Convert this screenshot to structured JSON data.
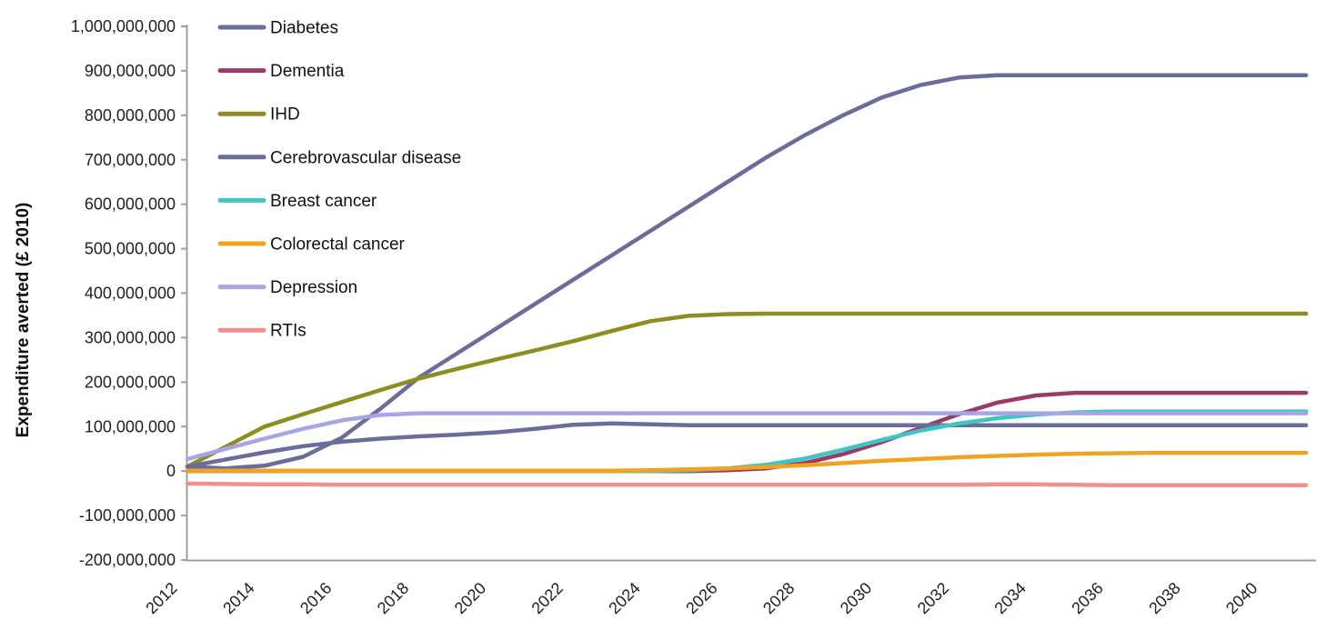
{
  "chart_data": {
    "type": "line",
    "title": "",
    "xlabel": "",
    "ylabel": "Expenditure averted (£ 2010)",
    "grid": false,
    "legend_position": "inside-top-left",
    "axis_color": "#a0a0a0",
    "value_unit": "GBP",
    "values_scale_note": "series values are in millions of £ (multiply by 1,000,000)",
    "x_years": [
      2012,
      2013,
      2014,
      2015,
      2016,
      2017,
      2018,
      2019,
      2020,
      2021,
      2022,
      2023,
      2024,
      2025,
      2026,
      2027,
      2028,
      2029,
      2030,
      2031,
      2032,
      2033,
      2034,
      2035,
      2036,
      2037,
      2038,
      2039,
      2040,
      2041
    ],
    "x_tick_labels": [
      "2012",
      "2014",
      "2016",
      "2018",
      "2020",
      "2022",
      "2024",
      "2026",
      "2028",
      "2030",
      "2032",
      "2034",
      "2036",
      "2038",
      "2040"
    ],
    "y_axis": {
      "min": -200000000,
      "max": 1000000000,
      "step": 100000000,
      "tick_labels": [
        "1,000,000,000",
        "900,000,000",
        "800,000,000",
        "700,000,000",
        "600,000,000",
        "500,000,000",
        "400,000,000",
        "300,000,000",
        "200,000,000",
        "100,000,000",
        "0",
        "-100,000,000",
        "-200,000,000"
      ]
    },
    "series": [
      {
        "name": "Diabetes",
        "color": "#6A6D9C",
        "values_m": [
          10,
          6,
          12,
          32,
          75,
          140,
          210,
          265,
          320,
          375,
          430,
          485,
          540,
          595,
          650,
          705,
          755,
          800,
          840,
          868,
          885,
          890,
          890,
          890,
          890,
          890,
          890,
          890,
          890,
          890
        ]
      },
      {
        "name": "Dementia",
        "color": "#9B3A68",
        "values_m": [
          0,
          0,
          0,
          0,
          0,
          0,
          0,
          0,
          0,
          0,
          0,
          0,
          0,
          0,
          2,
          6,
          18,
          38,
          65,
          97,
          128,
          154,
          170,
          176,
          176,
          176,
          176,
          176,
          176,
          176
        ]
      },
      {
        "name": "IHD",
        "color": "#8F8C20",
        "values_m": [
          10,
          55,
          100,
          128,
          155,
          182,
          208,
          230,
          251,
          271,
          292,
          315,
          337,
          349,
          353,
          354,
          354,
          354,
          354,
          354,
          354,
          354,
          354,
          354,
          354,
          354,
          354,
          354,
          354,
          354
        ]
      },
      {
        "name": "Cerebrovascular disease",
        "color": "#6A6D9C",
        "values_m": [
          10,
          26,
          42,
          56,
          66,
          73,
          78,
          82,
          87,
          95,
          104,
          107,
          105,
          103,
          103,
          103,
          103,
          103,
          103,
          103,
          103,
          103,
          103,
          103,
          103,
          103,
          103,
          103,
          103,
          103
        ]
      },
      {
        "name": "Breast cancer",
        "color": "#3FC6C0",
        "values_m": [
          0,
          0,
          0,
          0,
          0,
          0,
          0,
          0,
          0,
          0,
          0,
          0,
          0,
          2,
          6,
          14,
          28,
          48,
          70,
          91,
          107,
          119,
          127,
          132,
          134,
          134,
          134,
          134,
          134,
          134
        ]
      },
      {
        "name": "Colorectal cancer",
        "color": "#F3A21F",
        "values_m": [
          1,
          1,
          1,
          1,
          1,
          1,
          1,
          1,
          1,
          1,
          1,
          1,
          2,
          4,
          6,
          9,
          13,
          18,
          23,
          27,
          31,
          34,
          37,
          39,
          40,
          41,
          41,
          41,
          41,
          41
        ]
      },
      {
        "name": "Depression",
        "color": "#A8A5E6",
        "values_m": [
          27,
          50,
          73,
          95,
          114,
          126,
          130,
          130,
          130,
          130,
          130,
          130,
          130,
          130,
          130,
          130,
          130,
          130,
          130,
          130,
          130,
          130,
          130,
          130,
          130,
          130,
          130,
          130,
          130,
          130
        ]
      },
      {
        "name": "RTIs",
        "color": "#F0908F",
        "values_m": [
          -28,
          -29,
          -30,
          -30,
          -31,
          -31,
          -31,
          -31,
          -31,
          -31,
          -31,
          -31,
          -31,
          -31,
          -31,
          -31,
          -31,
          -31,
          -31,
          -31,
          -31,
          -30,
          -30,
          -31,
          -32,
          -32,
          -32,
          -32,
          -32,
          -32
        ]
      }
    ]
  }
}
